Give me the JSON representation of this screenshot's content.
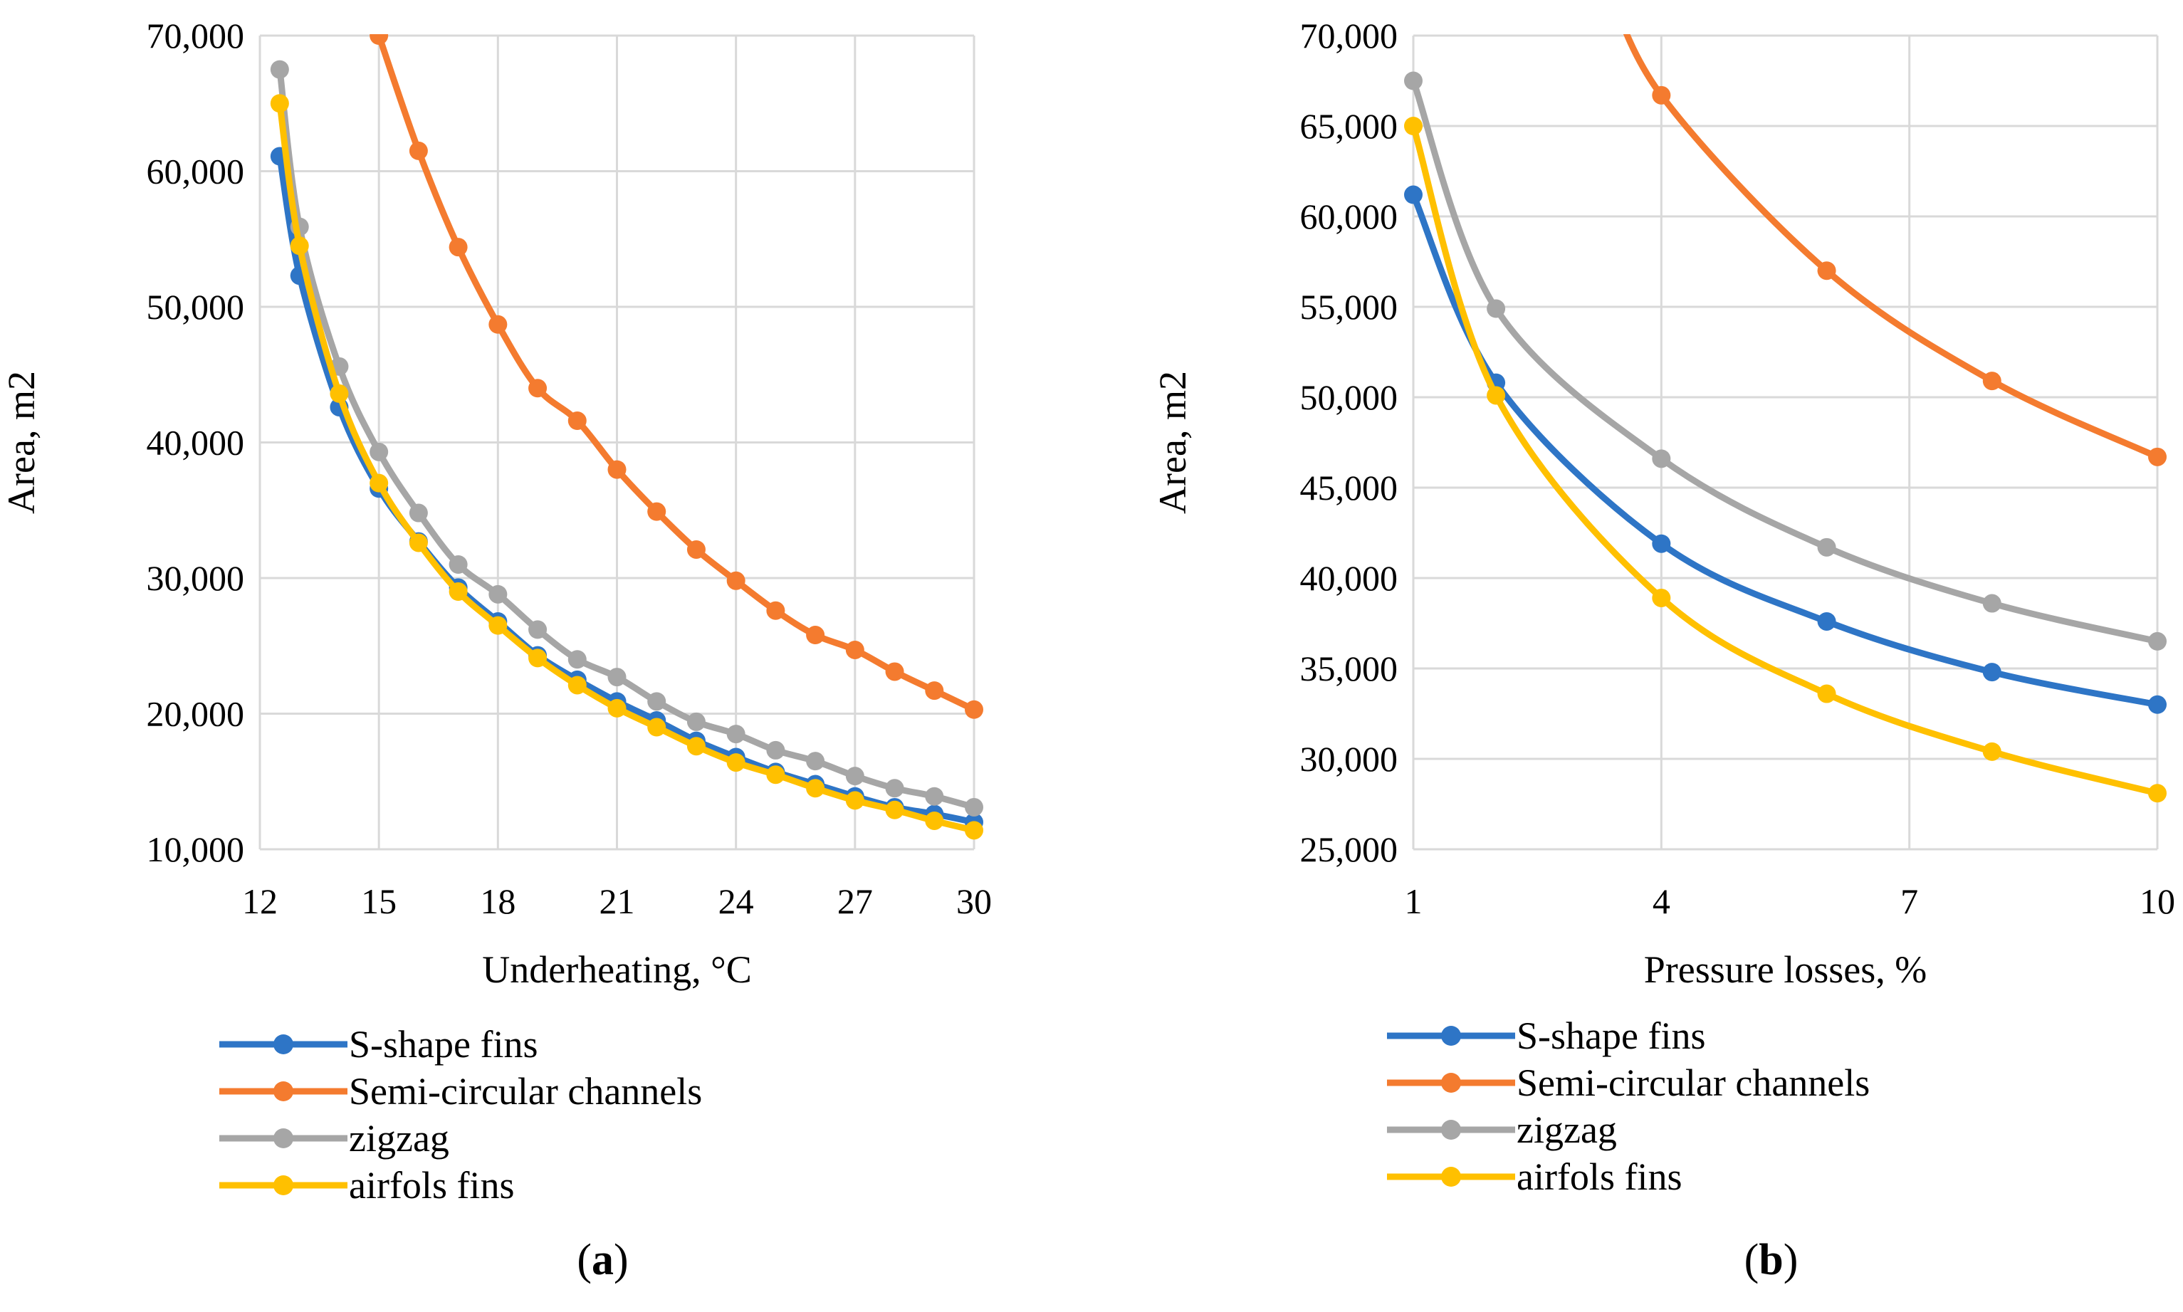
{
  "colors": {
    "s_shape": "#2E75C6",
    "semi_circular": "#F47B2F",
    "zigzag": "#A6A6A6",
    "airfoil": "#FFC000",
    "grid": "#D9D9D9"
  },
  "chart_data": [
    {
      "type": "line",
      "panel_label": "(a)",
      "panel_letter": "a",
      "xlabel": "Underheating, °C",
      "ylabel": "Area, m2",
      "xlim": [
        12,
        30
      ],
      "ylim": [
        10000,
        70000
      ],
      "x_ticks": [
        12,
        15,
        18,
        21,
        24,
        27,
        30
      ],
      "x_tick_labels": [
        "12",
        "15",
        "18",
        "21",
        "24",
        "27",
        "30"
      ],
      "y_ticks": [
        10000,
        20000,
        30000,
        40000,
        50000,
        60000,
        70000
      ],
      "y_tick_labels": [
        "10,000",
        "20,000",
        "30,000",
        "40,000",
        "50,000",
        "60,000",
        "70,000"
      ],
      "grid": true,
      "legend_position": "bottom",
      "series": [
        {
          "name": "S-shape fins",
          "color_key": "s_shape",
          "x": [
            12.5,
            13,
            14,
            15,
            16,
            17,
            18,
            19,
            20,
            21,
            22,
            23,
            24,
            25,
            26,
            27,
            28,
            29,
            30
          ],
          "values": [
            61100,
            52300,
            42600,
            36600,
            32700,
            29300,
            26800,
            24300,
            22500,
            20900,
            19500,
            18000,
            16800,
            15700,
            14800,
            13900,
            13100,
            12600,
            12000
          ]
        },
        {
          "name": "Semi-circular channels",
          "color_key": "semi_circular",
          "x": [
            15,
            16,
            17,
            18,
            19,
            20,
            21,
            22,
            23,
            24,
            25,
            26,
            27,
            28,
            29,
            30
          ],
          "values": [
            70000,
            61500,
            54400,
            48700,
            44000,
            41600,
            38000,
            34900,
            32100,
            29800,
            27600,
            25800,
            24700,
            23100,
            21700,
            20300
          ]
        },
        {
          "name": "zigzag",
          "color_key": "zigzag",
          "x": [
            12.5,
            13,
            14,
            15,
            16,
            17,
            18,
            19,
            20,
            21,
            22,
            23,
            24,
            25,
            26,
            27,
            28,
            29,
            30
          ],
          "values": [
            67500,
            55900,
            45600,
            39300,
            34800,
            31000,
            28800,
            26200,
            24000,
            22700,
            20900,
            19400,
            18500,
            17300,
            16500,
            15400,
            14500,
            13900,
            13100
          ]
        },
        {
          "name": "airfols fins",
          "color_key": "airfoil",
          "x": [
            12.5,
            13,
            14,
            15,
            16,
            17,
            18,
            19,
            20,
            21,
            22,
            23,
            24,
            25,
            26,
            27,
            28,
            29,
            30
          ],
          "values": [
            65000,
            54500,
            43600,
            37000,
            32600,
            29000,
            26500,
            24100,
            22100,
            20400,
            19000,
            17600,
            16400,
            15500,
            14500,
            13600,
            12900,
            12100,
            11400
          ]
        }
      ]
    },
    {
      "type": "line",
      "panel_label": "(b)",
      "panel_letter": "b",
      "xlabel": "Pressure losses, %",
      "ylabel": "Area, m2",
      "xlim": [
        1,
        10
      ],
      "ylim": [
        25000,
        70000
      ],
      "x_ticks": [
        1,
        4,
        7,
        10
      ],
      "x_tick_labels": [
        "1",
        "4",
        "7",
        "10"
      ],
      "y_ticks": [
        25000,
        30000,
        35000,
        40000,
        45000,
        50000,
        55000,
        60000,
        65000,
        70000
      ],
      "y_tick_labels": [
        "25,000",
        "30,000",
        "35,000",
        "40,000",
        "45,000",
        "50,000",
        "55,000",
        "60,000",
        "65,000",
        "70,000"
      ],
      "grid": true,
      "legend_position": "bottom",
      "series": [
        {
          "name": "S-shape fins",
          "color_key": "s_shape",
          "x": [
            1,
            2,
            4,
            6,
            8,
            10
          ],
          "values": [
            61200,
            50800,
            41900,
            37600,
            34800,
            33000
          ]
        },
        {
          "name": "Semi-circular channels",
          "color_key": "semi_circular",
          "x": [
            4,
            6,
            8,
            10
          ],
          "values": [
            66700,
            57000,
            50900,
            46700
          ]
        },
        {
          "name": "zigzag",
          "color_key": "zigzag",
          "x": [
            1,
            2,
            4,
            6,
            8,
            10
          ],
          "values": [
            67500,
            54900,
            46600,
            41700,
            38600,
            36500
          ]
        },
        {
          "name": "airfols fins",
          "color_key": "airfoil",
          "x": [
            1,
            2,
            4,
            6,
            8,
            10
          ],
          "values": [
            65000,
            50100,
            38900,
            33600,
            30400,
            28100
          ]
        }
      ]
    }
  ]
}
